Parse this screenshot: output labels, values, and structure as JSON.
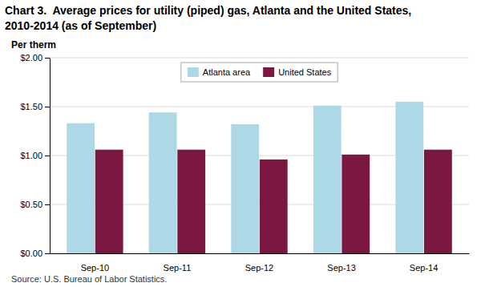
{
  "chart_data": {
    "type": "bar",
    "title": "Chart 3.  Average prices for utility (piped) gas, Atlanta and the United States,",
    "subtitle": "2010-2014 (as of September)",
    "y_label": "Per therm",
    "annotations": [
      "Source: U.S. Bureau of Labor Statistics."
    ],
    "categories": [
      "Sep-10",
      "Sep-11",
      "Sep-12",
      "Sep-13",
      "Sep-14"
    ],
    "series": [
      {
        "name": "Atlanta area",
        "color": "#ADD8E6",
        "values": [
          1.33,
          1.44,
          1.32,
          1.51,
          1.55
        ]
      },
      {
        "name": "United States",
        "color": "#7B1842",
        "values": [
          1.06,
          1.06,
          0.96,
          1.01,
          1.06
        ]
      }
    ],
    "ylim": [
      0.0,
      2.0
    ],
    "yticks": [
      {
        "value": 0.0,
        "label": "$0.00"
      },
      {
        "value": 0.5,
        "label": "$0.50"
      },
      {
        "value": 1.0,
        "label": "$1.00"
      },
      {
        "value": 1.5,
        "label": "$1.50"
      },
      {
        "value": 2.0,
        "label": "$2.00"
      }
    ],
    "grid": true,
    "legend": "top"
  }
}
